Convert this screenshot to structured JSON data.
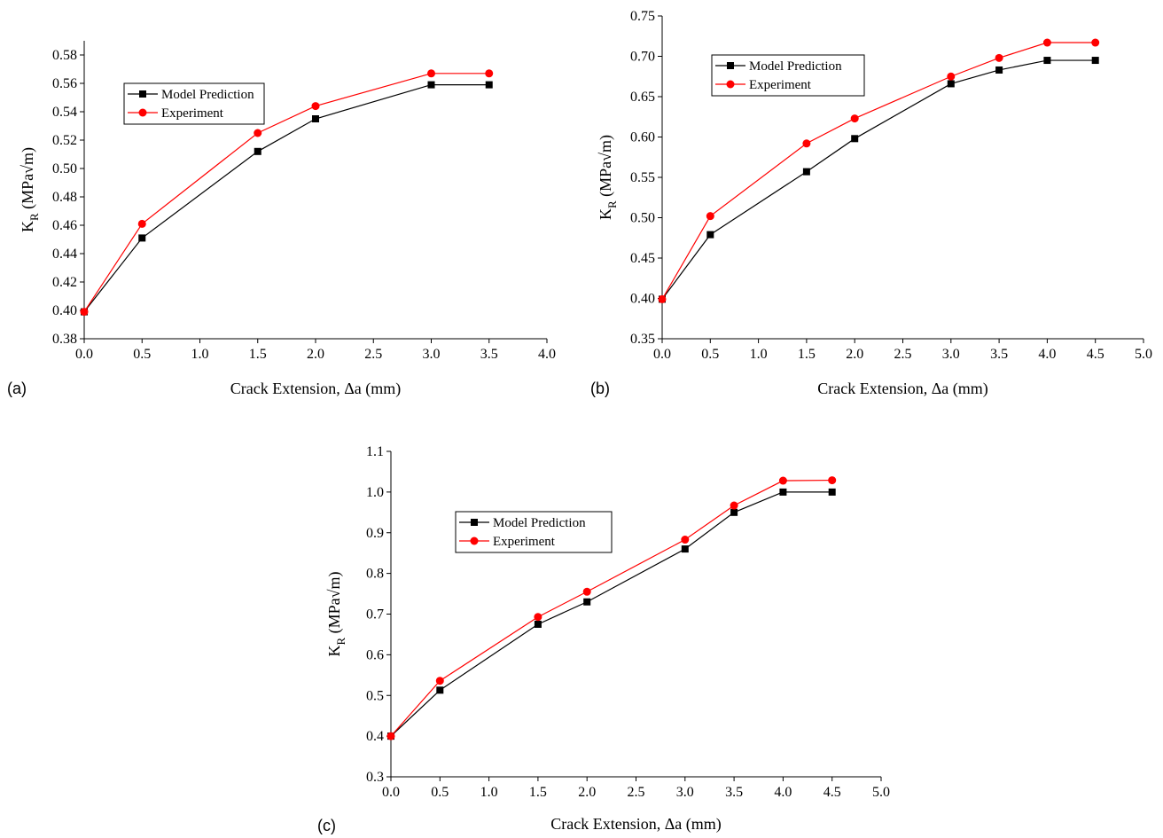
{
  "chart_data": [
    {
      "type": "line",
      "panel_label": "(a)",
      "xlabel": "Crack Extension, Δa (mm)",
      "ylabel_main": "K",
      "ylabel_sub": "R",
      "ylabel_units": " (MPa√m)",
      "xlim": [
        0,
        4.0
      ],
      "ylim": [
        0.38,
        0.59
      ],
      "xticks": [
        "0.0",
        "0.5",
        "1.0",
        "1.5",
        "2.0",
        "2.5",
        "3.0",
        "3.5",
        "4.0"
      ],
      "yticks": [
        "0.38",
        "0.40",
        "0.42",
        "0.44",
        "0.46",
        "0.48",
        "0.50",
        "0.52",
        "0.54",
        "0.56",
        "0.58"
      ],
      "legend_position": "upper-left",
      "series": [
        {
          "name": "Model Prediction",
          "color": "#000000",
          "marker": "square",
          "x": [
            0,
            0.5,
            1.5,
            2.0,
            3.0,
            3.5
          ],
          "y": [
            0.399,
            0.451,
            0.512,
            0.535,
            0.559,
            0.559
          ]
        },
        {
          "name": "Experiment",
          "color": "#ff0000",
          "marker": "circle",
          "x": [
            0,
            0.5,
            1.5,
            2.0,
            3.0,
            3.5
          ],
          "y": [
            0.399,
            0.461,
            0.525,
            0.544,
            0.567,
            0.567
          ]
        }
      ]
    },
    {
      "type": "line",
      "panel_label": "(b)",
      "xlabel": "Crack Extension, Δa (mm)",
      "ylabel_main": "K",
      "ylabel_sub": "R",
      "ylabel_units": " (MPa√m)",
      "xlim": [
        0,
        5.0
      ],
      "ylim": [
        0.35,
        0.75
      ],
      "xticks": [
        "0.0",
        "0.5",
        "1.0",
        "1.5",
        "2.0",
        "2.5",
        "3.0",
        "3.5",
        "4.0",
        "4.5",
        "5.0"
      ],
      "yticks": [
        "0.35",
        "0.40",
        "0.45",
        "0.50",
        "0.55",
        "0.60",
        "0.65",
        "0.70",
        "0.75"
      ],
      "legend_position": "upper-left",
      "series": [
        {
          "name": "Model Prediction",
          "color": "#000000",
          "marker": "square",
          "x": [
            0,
            0.5,
            1.5,
            2.0,
            3.0,
            3.5,
            4.0,
            4.5
          ],
          "y": [
            0.399,
            0.479,
            0.557,
            0.598,
            0.666,
            0.683,
            0.695,
            0.695
          ]
        },
        {
          "name": "Experiment",
          "color": "#ff0000",
          "marker": "circle",
          "x": [
            0,
            0.5,
            1.5,
            2.0,
            3.0,
            3.5,
            4.0,
            4.5
          ],
          "y": [
            0.399,
            0.502,
            0.592,
            0.623,
            0.675,
            0.698,
            0.717,
            0.717
          ]
        }
      ]
    },
    {
      "type": "line",
      "panel_label": "(c)",
      "xlabel": "Crack Extension, Δa (mm)",
      "ylabel_main": "K",
      "ylabel_sub": "R",
      "ylabel_units": " (MPa√m)",
      "xlim": [
        0,
        5.0
      ],
      "ylim": [
        0.3,
        1.1
      ],
      "xticks": [
        "0.0",
        "0.5",
        "1.0",
        "1.5",
        "2.0",
        "2.5",
        "3.0",
        "3.5",
        "4.0",
        "4.5",
        "5.0"
      ],
      "yticks": [
        "0.3",
        "0.4",
        "0.5",
        "0.6",
        "0.7",
        "0.8",
        "0.9",
        "1.0",
        "1.1"
      ],
      "legend_position": "upper-left",
      "series": [
        {
          "name": "Model Prediction",
          "color": "#000000",
          "marker": "square",
          "x": [
            0,
            0.5,
            1.5,
            2.0,
            3.0,
            3.5,
            4.0,
            4.5
          ],
          "y": [
            0.4,
            0.513,
            0.675,
            0.73,
            0.86,
            0.95,
            1.0,
            1.0
          ]
        },
        {
          "name": "Experiment",
          "color": "#ff0000",
          "marker": "circle",
          "x": [
            0,
            0.5,
            1.5,
            2.0,
            3.0,
            3.5,
            4.0,
            4.5
          ],
          "y": [
            0.4,
            0.536,
            0.693,
            0.755,
            0.883,
            0.967,
            1.028,
            1.029
          ]
        }
      ]
    }
  ]
}
